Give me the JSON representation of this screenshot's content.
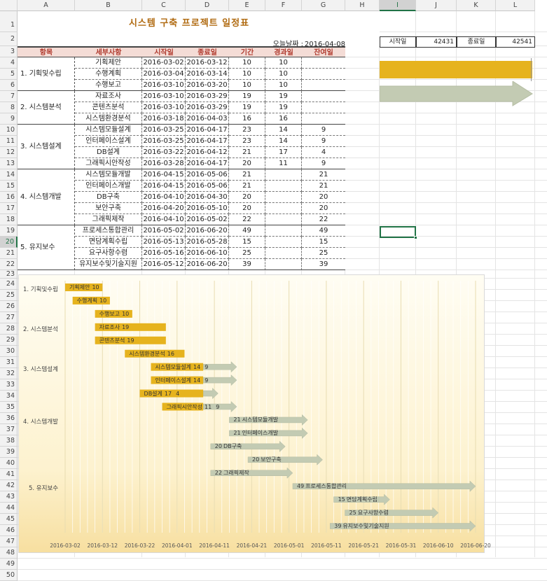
{
  "columns": [
    "A",
    "B",
    "C",
    "D",
    "E",
    "F",
    "G",
    "H",
    "I",
    "J",
    "K",
    "L"
  ],
  "selected_column": "I",
  "rows": [
    "1",
    "2",
    "3",
    "4",
    "5",
    "6",
    "7",
    "8",
    "9",
    "10",
    "11",
    "12",
    "13",
    "14",
    "15",
    "16",
    "17",
    "18",
    "19",
    "20",
    "21",
    "22",
    "23",
    "24",
    "25",
    "26",
    "27",
    "28",
    "29",
    "30",
    "31",
    "32",
    "33",
    "34",
    "35",
    "36",
    "37",
    "38",
    "39",
    "40",
    "41",
    "42",
    "43",
    "44",
    "45",
    "46",
    "47",
    "48",
    "49",
    "50"
  ],
  "selected_row": "20",
  "title": "시스템 구축 프로젝트 일정표",
  "today_label": "오늘날짜 :",
  "today_value": "2016-04-08",
  "range_box": {
    "start_label": "시작일",
    "start_value": "42431",
    "end_label": "종료일",
    "end_value": "42541"
  },
  "headers": {
    "item": "항목",
    "detail": "세부사항",
    "start": "시작일",
    "end": "종료일",
    "duration": "기간",
    "elapsed": "경과일",
    "remaining": "잔여일"
  },
  "groups": [
    {
      "name": "1. 기획및수립",
      "tasks": [
        {
          "detail": "기획제안",
          "start": "2016-03-02",
          "end": "2016-03-12",
          "duration": "10",
          "elapsed": "10",
          "remaining": ""
        },
        {
          "detail": "수행계획",
          "start": "2016-03-04",
          "end": "2016-03-14",
          "duration": "10",
          "elapsed": "10",
          "remaining": ""
        },
        {
          "detail": "수행보고",
          "start": "2016-03-10",
          "end": "2016-03-20",
          "duration": "10",
          "elapsed": "10",
          "remaining": ""
        }
      ]
    },
    {
      "name": "2. 시스템분석",
      "tasks": [
        {
          "detail": "자료조사",
          "start": "2016-03-10",
          "end": "2016-03-29",
          "duration": "19",
          "elapsed": "19",
          "remaining": ""
        },
        {
          "detail": "콘텐츠분석",
          "start": "2016-03-10",
          "end": "2016-03-29",
          "duration": "19",
          "elapsed": "19",
          "remaining": ""
        },
        {
          "detail": "시스템환경분석",
          "start": "2016-03-18",
          "end": "2016-04-03",
          "duration": "16",
          "elapsed": "16",
          "remaining": ""
        }
      ]
    },
    {
      "name": "3. 시스템설계",
      "tasks": [
        {
          "detail": "시스템모듈설계",
          "start": "2016-03-25",
          "end": "2016-04-17",
          "duration": "23",
          "elapsed": "14",
          "remaining": "9"
        },
        {
          "detail": "인터페이스설계",
          "start": "2016-03-25",
          "end": "2016-04-17",
          "duration": "23",
          "elapsed": "14",
          "remaining": "9"
        },
        {
          "detail": "DB설계",
          "start": "2016-03-22",
          "end": "2016-04-12",
          "duration": "21",
          "elapsed": "17",
          "remaining": "4"
        },
        {
          "detail": "그래픽시안작성",
          "start": "2016-03-28",
          "end": "2016-04-17",
          "duration": "20",
          "elapsed": "11",
          "remaining": "9"
        }
      ]
    },
    {
      "name": "4. 시스템개발",
      "tasks": [
        {
          "detail": "시스템모듈개발",
          "start": "2016-04-15",
          "end": "2016-05-06",
          "duration": "21",
          "elapsed": "",
          "remaining": "21"
        },
        {
          "detail": "인터페이스개발",
          "start": "2016-04-15",
          "end": "2016-05-06",
          "duration": "21",
          "elapsed": "",
          "remaining": "21"
        },
        {
          "detail": "DB구축",
          "start": "2016-04-10",
          "end": "2016-04-30",
          "duration": "20",
          "elapsed": "",
          "remaining": "20"
        },
        {
          "detail": "보안구축",
          "start": "2016-04-20",
          "end": "2016-05-10",
          "duration": "20",
          "elapsed": "",
          "remaining": "20"
        },
        {
          "detail": "그래픽제작",
          "start": "2016-04-10",
          "end": "2016-05-02",
          "duration": "22",
          "elapsed": "",
          "remaining": "22"
        }
      ]
    },
    {
      "name": "5. 유지보수",
      "tasks": [
        {
          "detail": "프로세스통합관리",
          "start": "2016-05-02",
          "end": "2016-06-20",
          "duration": "49",
          "elapsed": "",
          "remaining": "49"
        },
        {
          "detail": "면담계획수립",
          "start": "2016-05-13",
          "end": "2016-05-28",
          "duration": "15",
          "elapsed": "",
          "remaining": "15"
        },
        {
          "detail": "요구사항수렴",
          "start": "2016-05-16",
          "end": "2016-06-10",
          "duration": "25",
          "elapsed": "",
          "remaining": "25"
        },
        {
          "detail": "유지보수및기술지원",
          "start": "2016-05-12",
          "end": "2016-06-20",
          "duration": "39",
          "elapsed": "",
          "remaining": "39"
        }
      ]
    }
  ],
  "chart_data": {
    "type": "bar",
    "categories": [
      "기획제안",
      "수행계획",
      "수행보고",
      "자료조사",
      "콘텐츠분석",
      "시스템환경분석",
      "시스템모듈설계",
      "인터페이스설계",
      "DB설계",
      "그래픽시안작성",
      "시스템모듈개발",
      "인터페이스개발",
      "DB구축",
      "보안구축",
      "그래픽제작",
      "프로세스통합관리",
      "면담계획수립",
      "요구사항수렴",
      "유지보수및기술지원"
    ],
    "group_labels": [
      "1. 기획및수립",
      "2. 시스템분석",
      "3. 시스템설계",
      "4. 시스템개발",
      "5. 유지보수"
    ],
    "group_sizes": [
      3,
      3,
      4,
      5,
      4
    ],
    "start": [
      "2016-03-02",
      "2016-03-04",
      "2016-03-10",
      "2016-03-10",
      "2016-03-10",
      "2016-03-18",
      "2016-03-25",
      "2016-03-25",
      "2016-03-22",
      "2016-03-28",
      "2016-04-15",
      "2016-04-15",
      "2016-04-10",
      "2016-04-20",
      "2016-04-10",
      "2016-05-02",
      "2016-05-13",
      "2016-05-16",
      "2016-05-12"
    ],
    "series": [
      {
        "values": [
          10,
          10,
          10,
          19,
          19,
          16,
          14,
          14,
          17,
          11,
          0,
          0,
          0,
          0,
          0,
          0,
          0,
          0,
          0
        ],
        "color": "#e6b31e"
      },
      {
        "values": [
          0,
          0,
          0,
          0,
          0,
          0,
          9,
          9,
          4,
          9,
          21,
          21,
          20,
          20,
          22,
          49,
          15,
          25,
          39
        ],
        "color": "#c3cbb3"
      }
    ],
    "x_ticks": [
      "2016-03-02",
      "2016-03-12",
      "2016-03-22",
      "2016-04-01",
      "2016-04-11",
      "2016-04-21",
      "2016-05-01",
      "2016-05-11",
      "2016-05-21",
      "2016-05-31",
      "2016-06-10",
      "2016-06-20"
    ],
    "xlim": [
      "2016-03-02",
      "2016-06-20"
    ],
    "grid": true,
    "legend": "none"
  },
  "colors": {
    "elapsed": "#e6b31e",
    "remaining": "#c3cbb3",
    "header_fill": "#f4dcd6",
    "header_text": "#b03a2e",
    "title": "#b06a10",
    "selection": "#217346"
  }
}
